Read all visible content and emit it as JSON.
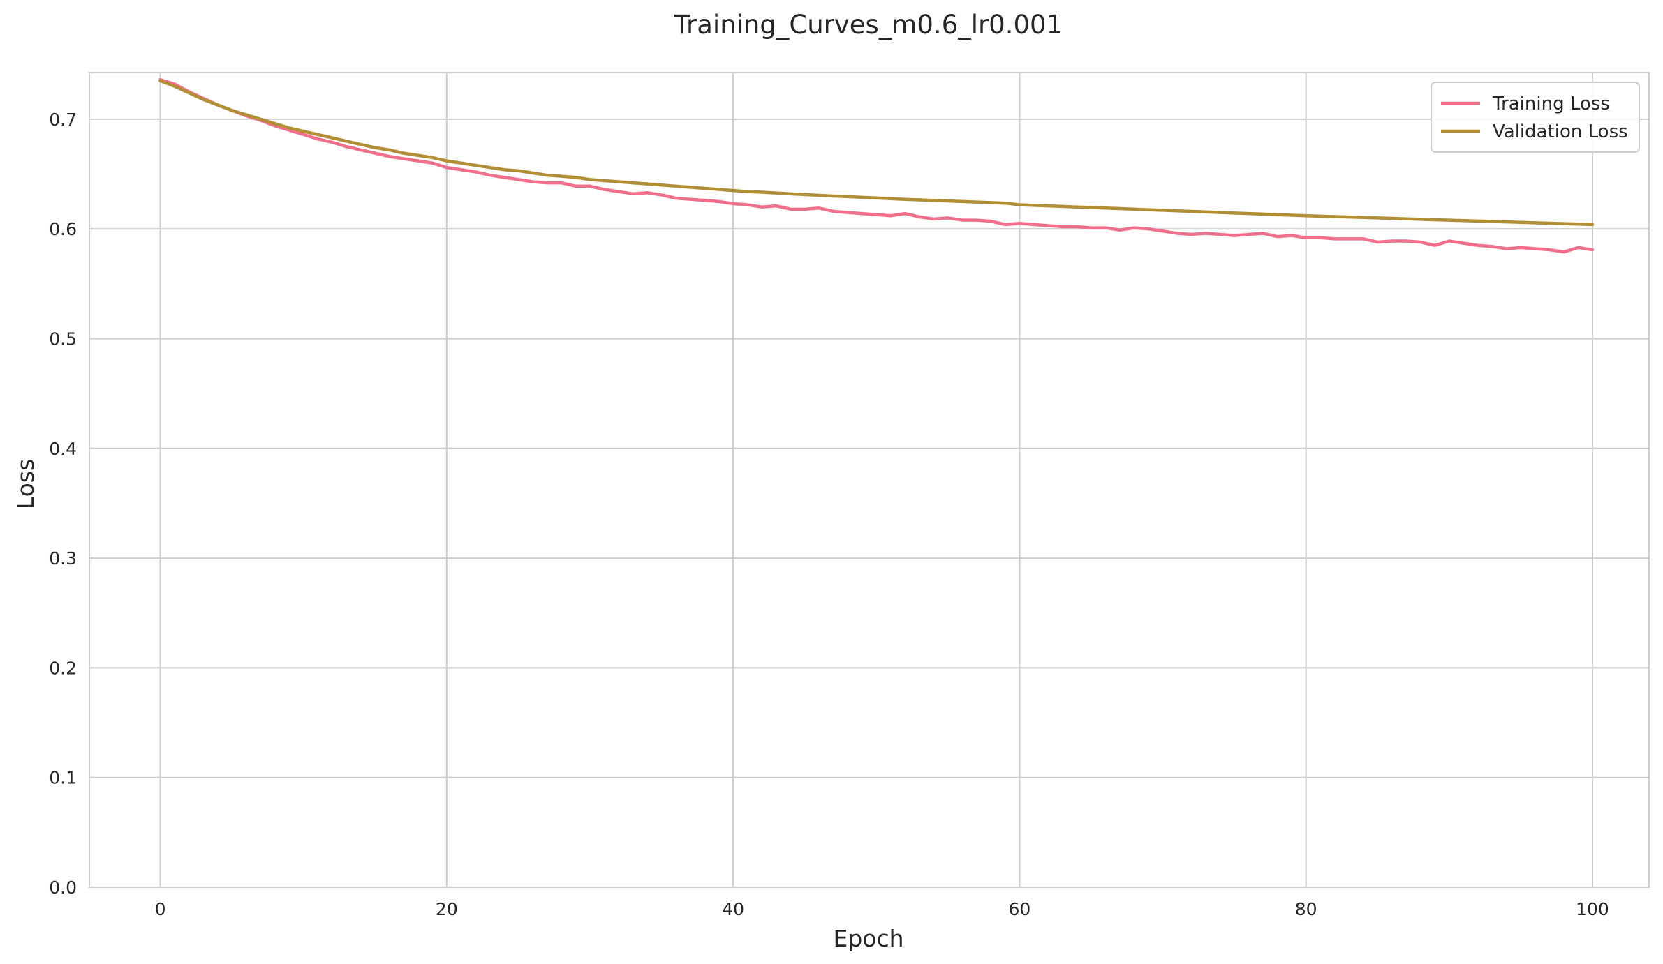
{
  "chart_data": {
    "type": "line",
    "title": "Training_Curves_m0.6_lr0.001",
    "xlabel": "Epoch",
    "ylabel": "Loss",
    "xlim": [
      -4.95,
      103.95
    ],
    "ylim": [
      0,
      0.7425
    ],
    "xticks": [
      0,
      20,
      40,
      60,
      80,
      100
    ],
    "yticks": [
      0.0,
      0.1,
      0.2,
      0.3,
      0.4,
      0.5,
      0.6,
      0.7
    ],
    "xtick_labels": [
      "0",
      "20",
      "40",
      "60",
      "80",
      "100"
    ],
    "ytick_labels": [
      "0.0",
      "0.1",
      "0.2",
      "0.3",
      "0.4",
      "0.5",
      "0.6",
      "0.7"
    ],
    "grid": true,
    "legend_position": "top-right",
    "series": [
      {
        "name": "Training Loss",
        "color": "#f0708b",
        "values": [
          0.736,
          0.732,
          0.725,
          0.719,
          0.713,
          0.708,
          0.703,
          0.699,
          0.694,
          0.69,
          0.686,
          0.682,
          0.679,
          0.675,
          0.672,
          0.669,
          0.666,
          0.664,
          0.662,
          0.66,
          0.656,
          0.654,
          0.652,
          0.649,
          0.647,
          0.645,
          0.643,
          0.642,
          0.642,
          0.639,
          0.639,
          0.636,
          0.634,
          0.632,
          0.633,
          0.631,
          0.628,
          0.627,
          0.626,
          0.625,
          0.623,
          0.622,
          0.62,
          0.621,
          0.618,
          0.618,
          0.619,
          0.616,
          0.615,
          0.614,
          0.613,
          0.612,
          0.614,
          0.611,
          0.609,
          0.61,
          0.608,
          0.608,
          0.607,
          0.604,
          0.605,
          0.604,
          0.603,
          0.602,
          0.602,
          0.601,
          0.601,
          0.599,
          0.601,
          0.6,
          0.598,
          0.596,
          0.595,
          0.596,
          0.595,
          0.594,
          0.595,
          0.596,
          0.593,
          0.594,
          0.592,
          0.592,
          0.591,
          0.591,
          0.591,
          0.588,
          0.589,
          0.589,
          0.588,
          0.585,
          0.589,
          0.587,
          0.585,
          0.584,
          0.582,
          0.583,
          0.582,
          0.581,
          0.579,
          0.583,
          0.581
        ]
      },
      {
        "name": "Validation Loss",
        "color": "#b28e36",
        "values": [
          0.735,
          0.73,
          0.724,
          0.718,
          0.713,
          0.708,
          0.704,
          0.7,
          0.696,
          0.692,
          0.689,
          0.686,
          0.683,
          0.68,
          0.677,
          0.674,
          0.672,
          0.669,
          0.667,
          0.665,
          0.662,
          0.66,
          0.658,
          0.656,
          0.654,
          0.653,
          0.651,
          0.649,
          0.648,
          0.647,
          0.645,
          0.644,
          0.643,
          0.642,
          0.641,
          0.64,
          0.639,
          0.638,
          0.637,
          0.636,
          0.635,
          0.634,
          0.6335,
          0.6328,
          0.632,
          0.6313,
          0.6306,
          0.63,
          0.6294,
          0.6288,
          0.6282,
          0.6276,
          0.627,
          0.6265,
          0.626,
          0.6255,
          0.625,
          0.6245,
          0.624,
          0.6235,
          0.622,
          0.6215,
          0.621,
          0.6205,
          0.62,
          0.6195,
          0.619,
          0.6185,
          0.618,
          0.6175,
          0.617,
          0.6165,
          0.616,
          0.6155,
          0.615,
          0.6145,
          0.614,
          0.6135,
          0.613,
          0.6125,
          0.612,
          0.6116,
          0.6112,
          0.6108,
          0.6104,
          0.61,
          0.6096,
          0.6092,
          0.6088,
          0.6084,
          0.608,
          0.6076,
          0.6072,
          0.6068,
          0.6064,
          0.606,
          0.6056,
          0.6052,
          0.6048,
          0.6044,
          0.604
        ]
      }
    ]
  }
}
